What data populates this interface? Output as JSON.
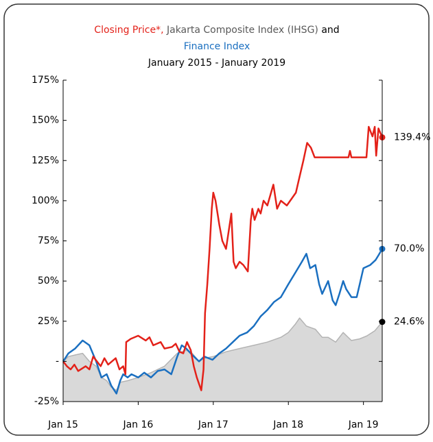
{
  "chart_data": {
    "type": "line",
    "title": [
      {
        "text": "Closing Price*,",
        "color": "#e32119"
      },
      {
        "text": "Jakarta Composite Index (IHSG)",
        "color": "#595959"
      },
      {
        "text": "and",
        "color": "#000000"
      },
      {
        "text": "Finance Index",
        "color": "#1a6fc0"
      }
    ],
    "subtitle": "January 2015 - January 2019",
    "xlim": [
      2015,
      2019.25
    ],
    "xticks": [
      {
        "value": 2015,
        "label": "Jan 15"
      },
      {
        "value": 2016,
        "label": "Jan 16"
      },
      {
        "value": 2017,
        "label": "Jan 17"
      },
      {
        "value": 2018,
        "label": "Jan 18"
      },
      {
        "value": 2019,
        "label": "Jan 19"
      }
    ],
    "ylim": [
      -25,
      175
    ],
    "yticks": [
      {
        "value": -25,
        "label": "-25%"
      },
      {
        "value": 0,
        "label": "-"
      },
      {
        "value": 25,
        "label": "25%"
      },
      {
        "value": 50,
        "label": "50%"
      },
      {
        "value": 75,
        "label": "75%"
      },
      {
        "value": 100,
        "label": "100%"
      },
      {
        "value": 125,
        "label": "125%"
      },
      {
        "value": 150,
        "label": "150%"
      },
      {
        "value": 175,
        "label": "175%"
      }
    ],
    "series": [
      {
        "color": "#b3b3b3",
        "fill": "#d9d9d9",
        "label_color": "#000000",
        "x": [
          2015.0,
          2015.07,
          2015.16,
          2015.26,
          2015.35,
          2015.44,
          2015.51,
          2015.58,
          2015.64,
          2015.71,
          2015.76,
          2015.86,
          2016.0,
          2016.17,
          2016.35,
          2016.52,
          2016.64,
          2016.72,
          2016.81,
          2016.88,
          2017.0,
          2017.17,
          2017.35,
          2017.54,
          2017.72,
          2017.9,
          2018.0,
          2018.09,
          2018.15,
          2018.24,
          2018.36,
          2018.45,
          2018.53,
          2018.63,
          2018.73,
          2018.84,
          2018.95,
          2019.05,
          2019.15,
          2019.25
        ],
        "values": [
          0,
          3,
          4,
          5,
          0,
          -3,
          -10,
          -12,
          -16,
          -18,
          -13,
          -12,
          -10,
          -7,
          -3,
          5,
          7,
          5,
          0,
          2,
          3,
          6,
          8,
          10,
          12,
          15,
          18,
          23,
          27,
          22,
          20,
          15,
          15,
          12,
          18,
          13,
          14,
          16,
          19,
          24.6
        ],
        "end_label": "24.6%"
      },
      {
        "color": "#1a6fc0",
        "label_color": "#1a6fc0",
        "x": [
          2015.0,
          2015.07,
          2015.16,
          2015.26,
          2015.35,
          2015.44,
          2015.51,
          2015.58,
          2015.64,
          2015.71,
          2015.76,
          2015.8,
          2015.86,
          2015.91,
          2016.0,
          2016.08,
          2016.17,
          2016.26,
          2016.35,
          2016.44,
          2016.52,
          2016.58,
          2016.64,
          2016.72,
          2016.81,
          2016.88,
          2016.99,
          2017.08,
          2017.17,
          2017.26,
          2017.35,
          2017.45,
          2017.54,
          2017.63,
          2017.72,
          2017.81,
          2017.9,
          2018.0,
          2018.09,
          2018.18,
          2018.24,
          2018.29,
          2018.36,
          2018.41,
          2018.45,
          2018.53,
          2018.59,
          2018.63,
          2018.68,
          2018.73,
          2018.77,
          2018.84,
          2018.91,
          2018.95,
          2019.0,
          2019.09,
          2019.16,
          2019.2,
          2019.25
        ],
        "values": [
          0,
          5,
          8,
          13,
          10,
          0,
          -10,
          -8,
          -15,
          -20,
          -12,
          -8,
          -10,
          -8,
          -10,
          -7,
          -10,
          -6,
          -5,
          -8,
          3,
          10,
          8,
          4,
          0,
          3,
          1,
          5,
          8,
          12,
          16,
          18,
          22,
          28,
          32,
          37,
          40,
          48,
          55,
          62,
          67,
          58,
          60,
          48,
          42,
          50,
          38,
          35,
          42,
          50,
          45,
          40,
          40,
          48,
          58,
          60,
          63,
          66,
          70
        ],
        "end_label": "70.0%"
      },
      {
        "color": "#e32119",
        "label_color": "#e32119",
        "x": [
          2015.0,
          2015.05,
          2015.1,
          2015.15,
          2015.2,
          2015.3,
          2015.35,
          2015.4,
          2015.5,
          2015.55,
          2015.6,
          2015.7,
          2015.75,
          2015.8,
          2015.83,
          2015.84,
          2015.9,
          2016.0,
          2016.1,
          2016.15,
          2016.2,
          2016.3,
          2016.35,
          2016.45,
          2016.5,
          2016.55,
          2016.6,
          2016.65,
          2016.7,
          2016.74,
          2016.78,
          2016.84,
          2016.87,
          2016.89,
          2016.92,
          2016.95,
          2016.98,
          2017.0,
          2017.03,
          2017.08,
          2017.12,
          2017.17,
          2017.24,
          2017.27,
          2017.3,
          2017.35,
          2017.4,
          2017.46,
          2017.5,
          2017.52,
          2017.55,
          2017.6,
          2017.63,
          2017.67,
          2017.72,
          2017.8,
          2017.85,
          2017.9,
          2017.98,
          2018.1,
          2018.15,
          2018.2,
          2018.25,
          2018.3,
          2018.35,
          2018.8,
          2018.82,
          2018.84,
          2019.04,
          2019.07,
          2019.12,
          2019.15,
          2019.17,
          2019.2,
          2019.25
        ],
        "values": [
          0,
          -3,
          -5,
          -2,
          -6,
          -3,
          -5,
          3,
          -3,
          2,
          -2,
          2,
          -5,
          -3,
          -8,
          12,
          14,
          16,
          13,
          15,
          10,
          12,
          8,
          9,
          11,
          6,
          5,
          12,
          7,
          -3,
          -10,
          -18,
          -5,
          30,
          48,
          70,
          95,
          105,
          100,
          85,
          75,
          70,
          92,
          62,
          58,
          62,
          60,
          56,
          88,
          95,
          88,
          95,
          92,
          100,
          97,
          110,
          95,
          100,
          97,
          105,
          115,
          125,
          136,
          133,
          127,
          127,
          131,
          127,
          127,
          146,
          140,
          146,
          128,
          145,
          139.4
        ],
        "end_label": "139.4%"
      }
    ]
  }
}
